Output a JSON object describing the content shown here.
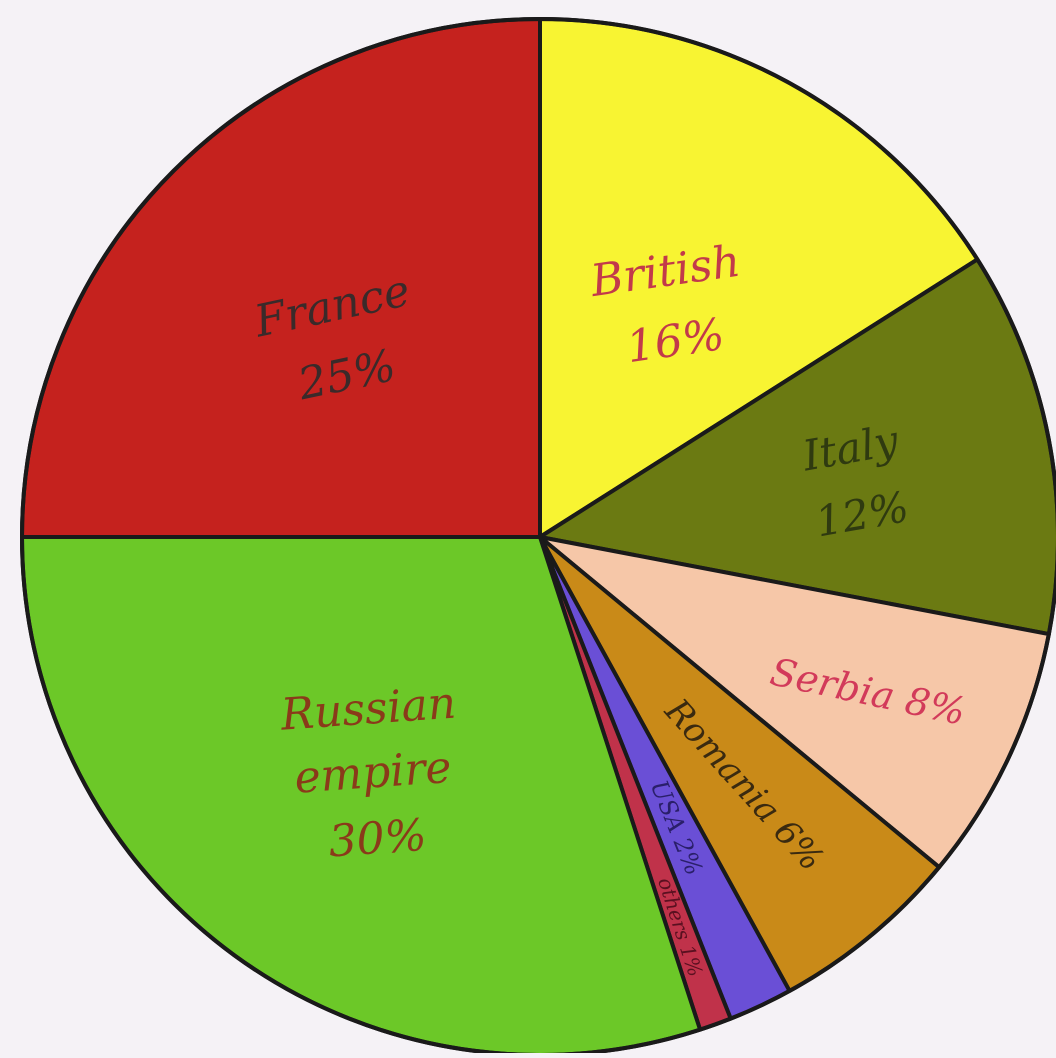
{
  "chart_data": {
    "type": "pie",
    "title": "",
    "slices": [
      {
        "label": "British",
        "value": 16,
        "value_label": "16%",
        "color": "#f8f432",
        "text_color": "#c23a4a"
      },
      {
        "label": "Italy",
        "value": 12,
        "value_label": "12%",
        "color": "#6b7a12",
        "text_color": "#2f3a10"
      },
      {
        "label": "Serbia",
        "value": 8,
        "value_label": "8%",
        "color": "#f6c7a8",
        "text_color": "#d23a5a"
      },
      {
        "label": "Romania",
        "value": 6,
        "value_label": "6%",
        "color": "#c98a18",
        "text_color": "#3a2a10"
      },
      {
        "label": "USA",
        "value": 2,
        "value_label": "2%",
        "color": "#6a4fd6",
        "text_color": "#2a1f6a"
      },
      {
        "label": "others",
        "value": 1,
        "value_label": "1%",
        "color": "#c0324a",
        "text_color": "#5a1020"
      },
      {
        "label": "Russian empire",
        "value": 30,
        "value_label": "30%",
        "color": "#6cc828",
        "text_color": "#8a3a1a"
      },
      {
        "label": "France",
        "value": 25,
        "value_label": "25%",
        "color": "#c5221e",
        "text_color": "#3a2a2a"
      }
    ],
    "start_angle_deg": 0,
    "direction": "clockwise",
    "legend": "none"
  }
}
